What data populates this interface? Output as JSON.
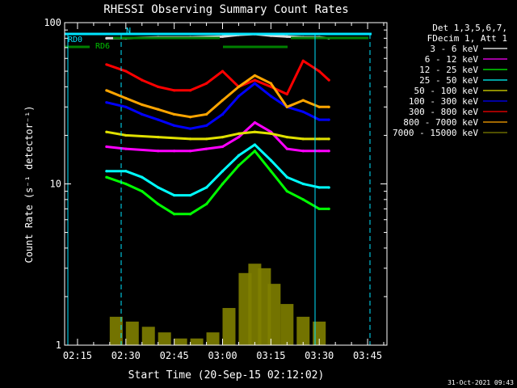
{
  "chart_data": {
    "type": "line",
    "title": "RHESSI Observing Summary Count Rates",
    "xlabel": "Start Time (20-Sep-15 02:12:02)",
    "ylabel": "Count Rate (s⁻¹ detector⁻¹)",
    "yscale": "log",
    "ylim": [
      1,
      100
    ],
    "xlim": [
      "02:11",
      "03:51"
    ],
    "x_ticks": [
      "02:15",
      "02:30",
      "02:45",
      "03:00",
      "03:15",
      "03:30",
      "03:45"
    ],
    "y_ticks": [
      "1",
      "10",
      "100"
    ],
    "grid": false,
    "legend_position": "right",
    "legend_header": [
      "Det 1,3,5,6,7,",
      "FDecim 1, Att 1"
    ],
    "series": [
      {
        "name": "3 - 6 keV",
        "color": "#000000",
        "x": [
          "02:24",
          "02:30",
          "02:40",
          "02:50",
          "03:00",
          "03:05",
          "03:10",
          "03:15",
          "03:20",
          "03:25",
          "03:30",
          "03:33"
        ],
        "values": [
          80,
          80,
          81,
          81,
          82,
          84,
          85,
          83,
          82,
          81,
          81,
          80
        ]
      },
      {
        "name": "6 - 12 keV",
        "color": "#ff00ff",
        "x": [
          "02:24",
          "02:30",
          "02:40",
          "02:45",
          "02:50",
          "02:55",
          "03:00",
          "03:05",
          "03:10",
          "03:15",
          "03:20",
          "03:25",
          "03:30",
          "03:33"
        ],
        "values": [
          17,
          16.5,
          16,
          16,
          16,
          16.5,
          17,
          19.5,
          24,
          21,
          16.5,
          16,
          16,
          16
        ]
      },
      {
        "name": "12 - 25 keV",
        "color": "#00ff00",
        "x": [
          "02:24",
          "02:30",
          "02:35",
          "02:40",
          "02:45",
          "02:50",
          "02:55",
          "03:00",
          "03:05",
          "03:10",
          "03:15",
          "03:20",
          "03:25",
          "03:30",
          "03:33"
        ],
        "values": [
          11,
          10,
          9,
          7.5,
          6.5,
          6.5,
          7.5,
          10,
          13,
          16,
          12,
          9,
          8,
          7,
          7
        ]
      },
      {
        "name": "25 - 50 keV",
        "color": "#00ffff",
        "x": [
          "02:24",
          "02:30",
          "02:35",
          "02:40",
          "02:45",
          "02:50",
          "02:55",
          "03:00",
          "03:05",
          "03:10",
          "03:15",
          "03:20",
          "03:25",
          "03:30",
          "03:33"
        ],
        "values": [
          12,
          12,
          11,
          9.5,
          8.5,
          8.5,
          9.5,
          12,
          15,
          17.5,
          14,
          11,
          10,
          9.5,
          9.5
        ]
      },
      {
        "name": "50 - 100 keV",
        "color": "#e0e000",
        "x": [
          "02:24",
          "02:30",
          "02:40",
          "02:50",
          "02:55",
          "03:00",
          "03:05",
          "03:10",
          "03:15",
          "03:20",
          "03:25",
          "03:30",
          "03:33"
        ],
        "values": [
          21,
          20,
          19.5,
          19,
          19,
          19.5,
          20.5,
          21,
          20.5,
          19.5,
          19,
          19,
          19
        ]
      },
      {
        "name": "100 - 300 keV",
        "color": "#0000ff",
        "x": [
          "02:24",
          "02:30",
          "02:35",
          "02:40",
          "02:45",
          "02:50",
          "02:55",
          "03:00",
          "03:05",
          "03:10",
          "03:15",
          "03:20",
          "03:25",
          "03:30",
          "03:33"
        ],
        "values": [
          32,
          30,
          27,
          25,
          23,
          22,
          23,
          27,
          35,
          42,
          35,
          30,
          28,
          25,
          25
        ]
      },
      {
        "name": "300 - 800 keV",
        "color": "#ff0000",
        "x": [
          "02:24",
          "02:30",
          "02:35",
          "02:40",
          "02:45",
          "02:50",
          "02:55",
          "03:00",
          "03:05",
          "03:10",
          "03:15",
          "03:20",
          "03:25",
          "03:30",
          "03:33"
        ],
        "values": [
          55,
          50,
          44,
          40,
          38,
          38,
          42,
          50,
          40,
          44,
          40,
          36,
          58,
          50,
          44
        ]
      },
      {
        "name": "800 - 7000 keV",
        "color": "#ffa500",
        "x": [
          "02:24",
          "02:30",
          "02:35",
          "02:40",
          "02:45",
          "02:50",
          "02:55",
          "03:00",
          "03:05",
          "03:10",
          "03:15",
          "03:20",
          "03:25",
          "03:30",
          "03:33"
        ],
        "values": [
          38,
          34,
          31,
          29,
          27,
          26,
          27,
          33,
          40,
          47,
          42,
          30,
          33,
          30,
          30
        ]
      },
      {
        "name": "7000 - 15000 keV",
        "color": "#808000",
        "x": [
          "02:27",
          "02:32",
          "02:37",
          "02:42",
          "02:47",
          "02:52",
          "02:57",
          "03:02",
          "03:07",
          "03:10",
          "03:13",
          "03:16",
          "03:20",
          "03:25",
          "03:30"
        ],
        "values": [
          1.5,
          1.4,
          1.3,
          1.2,
          1.1,
          1.1,
          1.2,
          1.7,
          2.8,
          3.2,
          3.0,
          2.4,
          1.8,
          1.5,
          1.4
        ]
      }
    ],
    "annotations": [
      "RD0",
      "RD6",
      "N"
    ]
  },
  "footer": {
    "timestamp": "31-Oct-2021 09:43"
  }
}
